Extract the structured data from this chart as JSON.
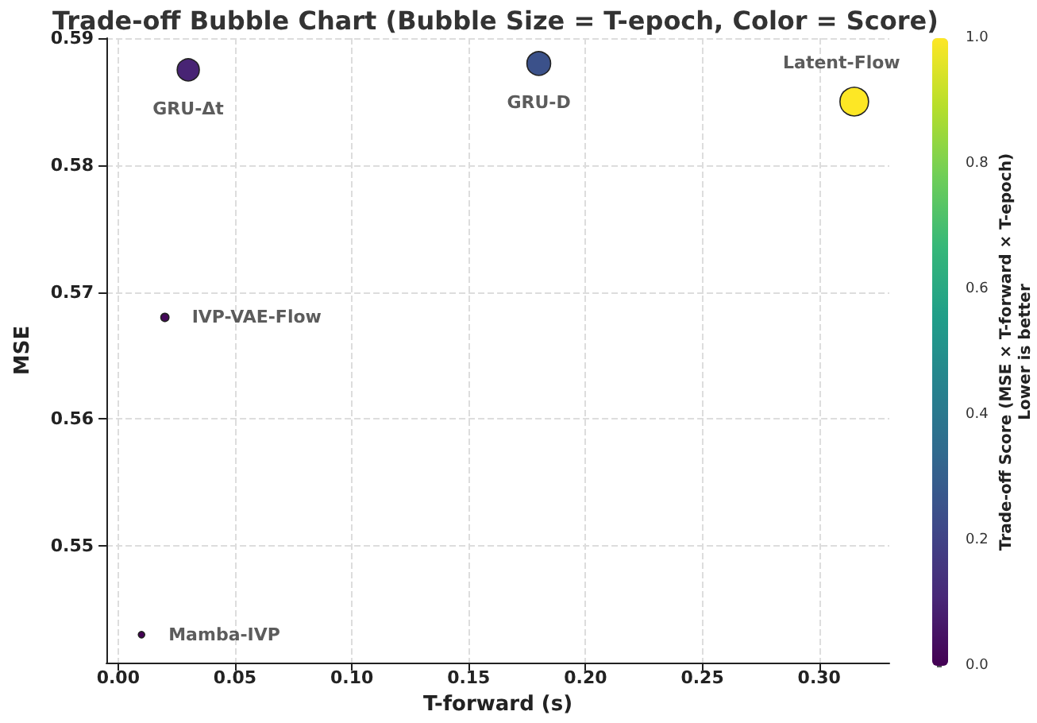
{
  "chart_data": {
    "type": "bubble",
    "title": "Trade-off Bubble Chart (Bubble Size = T-epoch, Color = Score)",
    "xlabel": "T-forward (s)",
    "ylabel": "MSE",
    "clabel": "Trade-off Score (MSE × T-forward × T-epoch)\nLower is better",
    "x": [
      0.03,
      0.18,
      0.315,
      0.02,
      0.01
    ],
    "values": [
      0.5875,
      0.588,
      0.585,
      0.568,
      0.543
    ],
    "sizes": [
      0.6,
      0.69,
      1,
      0.08,
      0.05
    ],
    "cvalues": [
      0.1,
      0.25,
      1,
      0.02,
      0
    ],
    "clim": [
      0,
      1
    ],
    "cticks": [
      {
        "value": 0,
        "label": "0.0"
      },
      {
        "value": 0.2,
        "label": "0.2"
      },
      {
        "value": 0.4,
        "label": "0.4"
      },
      {
        "value": 0.6,
        "label": "0.6"
      },
      {
        "value": 0.8,
        "label": "0.8"
      },
      {
        "value": 1,
        "label": "1.0"
      }
    ],
    "xlim": [
      -0.005,
      0.33
    ],
    "xticks": [
      {
        "value": 0,
        "label": "0.00"
      },
      {
        "value": 0.05,
        "label": "0.05"
      },
      {
        "value": 0.1,
        "label": "0.10"
      },
      {
        "value": 0.15,
        "label": "0.15"
      },
      {
        "value": 0.2,
        "label": "0.20"
      },
      {
        "value": 0.25,
        "label": "0.25"
      },
      {
        "value": 0.3,
        "label": "0.30"
      }
    ],
    "ylim": [
      0.5408,
      0.59
    ],
    "yticks": [
      0.55,
      0.56,
      0.57,
      0.58,
      0.59
    ],
    "annotations": [
      {
        "text": "GRU-Δt",
        "x": 0.03,
        "y": 0.5875
      },
      {
        "text": "GRU-D",
        "x": 0.18,
        "y": 0.588
      },
      {
        "text": "Latent-Flow",
        "x": 0.315,
        "y": 0.585
      },
      {
        "text": "IVP-VAE-Flow",
        "x": 0.02,
        "y": 0.568
      },
      {
        "text": "Mamba-IVP",
        "x": 0.01,
        "y": 0.543
      }
    ],
    "grid": true,
    "marker": "circle"
  }
}
